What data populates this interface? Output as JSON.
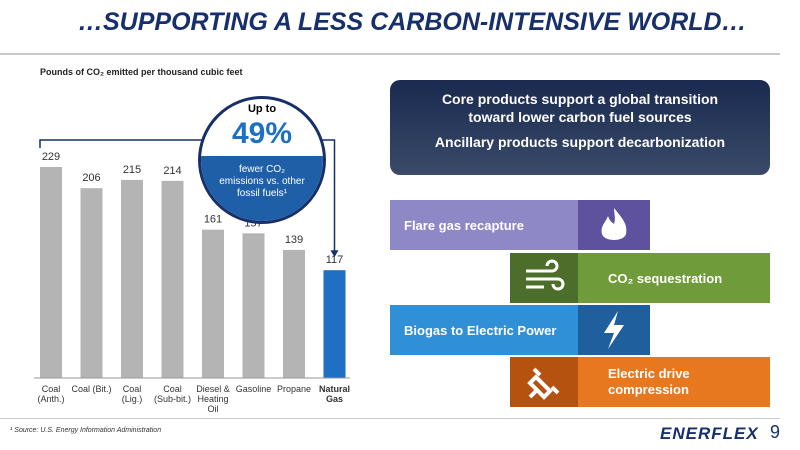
{
  "title": "…SUPPORTING A LESS CARBON-INTENSIVE WORLD…",
  "chart_data": {
    "type": "bar",
    "title": "Pounds of CO₂ emitted per thousand cubic feet",
    "categories": [
      "Coal (Anth.)",
      "Coal (Bit.)",
      "Coal (Lig.)",
      "Coal (Sub-bit.)",
      "Diesel & Heating Oil",
      "Gasoline",
      "Propane",
      "Natural Gas"
    ],
    "values": [
      229,
      206,
      215,
      214,
      161,
      157,
      139,
      117
    ],
    "colors": [
      "#b4b4b4",
      "#b4b4b4",
      "#b4b4b4",
      "#b4b4b4",
      "#b4b4b4",
      "#b4b4b4",
      "#b4b4b4",
      "#1f6fc5"
    ],
    "highlight": 7
  },
  "callout": {
    "top": "Up to",
    "value": "49%",
    "text": "fewer CO₂ emissions vs. other fossil fuels¹"
  },
  "core_box": [
    "Core products support a global transition toward lower carbon fuel sources",
    "Ancillary products support decarbonization"
  ],
  "tiles": [
    "Flare gas recapture",
    "CO₂ sequestration",
    "Biogas to Electric Power",
    "Electric drive compression"
  ],
  "footnote": "¹ Source: U.S. Energy Information Administration",
  "logo": "ENERFLEX",
  "page": "9"
}
